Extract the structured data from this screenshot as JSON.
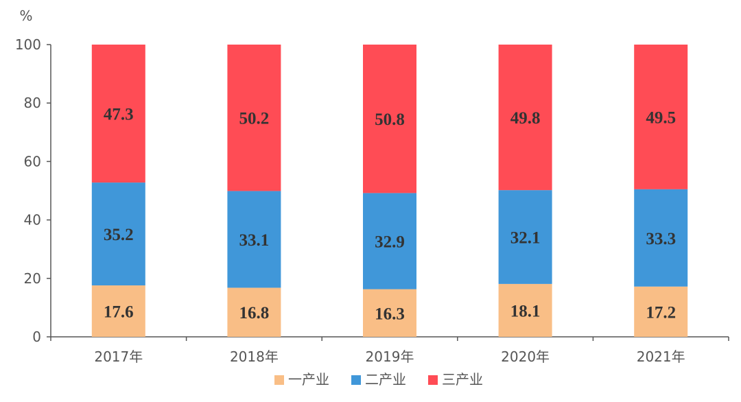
{
  "chart_data": {
    "type": "bar",
    "stacked": true,
    "unit_label": "%",
    "categories": [
      "2017年",
      "2018年",
      "2019年",
      "2020年",
      "2021年"
    ],
    "series": [
      {
        "name": "一产业",
        "color": "#F9BE86",
        "values": [
          17.6,
          16.8,
          16.3,
          18.1,
          17.2
        ]
      },
      {
        "name": "二产业",
        "color": "#4097D9",
        "values": [
          35.2,
          33.1,
          32.9,
          32.1,
          33.3
        ]
      },
      {
        "name": "三产业",
        "color": "#FF4C55",
        "values": [
          47.3,
          50.2,
          50.8,
          49.8,
          49.5
        ]
      }
    ],
    "ylim": [
      0,
      100
    ],
    "yticks": [
      "0",
      "20",
      "40",
      "60",
      "80",
      "100"
    ],
    "legend_position": "bottom-center",
    "grid": false
  }
}
